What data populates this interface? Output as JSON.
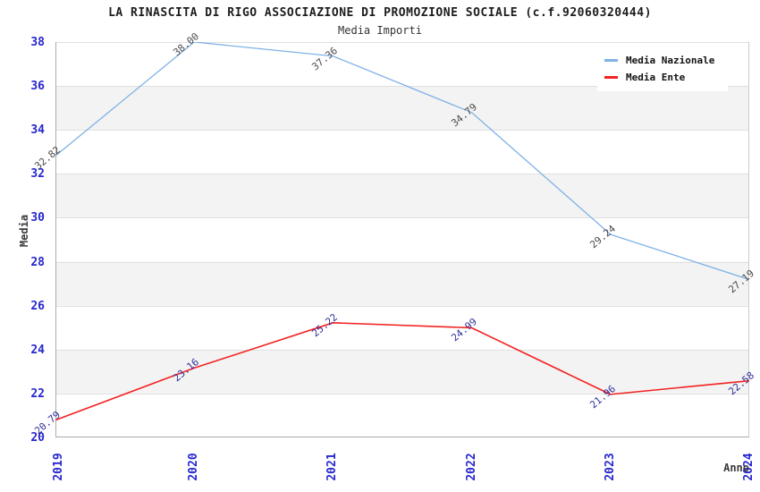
{
  "chart_data": {
    "type": "line",
    "title": "LA RINASCITA DI RIGO ASSOCIAZIONE DI PROMOZIONE SOCIALE (c.f.92060320444)",
    "subtitle": "Media Importi",
    "xlabel": "Anno",
    "ylabel": "Media",
    "categories": [
      "2019",
      "2020",
      "2021",
      "2022",
      "2023",
      "2024"
    ],
    "ylim": [
      20,
      38
    ],
    "ytick_step": 2,
    "ytick_labels": [
      "20",
      "22",
      "24",
      "26",
      "28",
      "30",
      "32",
      "34",
      "36",
      "38"
    ],
    "grid": "horizontal gridlines with alternating white/gray bands",
    "legend_position": "top-right",
    "series": [
      {
        "name": "Media Nazionale",
        "color": "#7fb2e6",
        "label_color": "#4a4a4a",
        "values": [
          32.82,
          38.0,
          37.36,
          34.79,
          29.24,
          27.19
        ],
        "labels": [
          "32.82",
          "38.00",
          "37.36",
          "34.79",
          "29.24",
          "27.19"
        ]
      },
      {
        "name": "Media Ente",
        "color": "#f32222",
        "label_color": "#30309a",
        "values": [
          20.79,
          23.16,
          25.22,
          24.99,
          21.96,
          22.58
        ],
        "labels": [
          "20.79",
          "23.16",
          "25.22",
          "24.99",
          "21.96",
          "22.58"
        ]
      }
    ],
    "style": {
      "band_color": "#f3f3f3",
      "band_alt_color": "#ffffff",
      "gridline_color": "#e0e0e0",
      "spine_color": "#aaaaaa",
      "right_spine_color": "#cccccc",
      "tick_text_color": "#2626cd"
    }
  }
}
